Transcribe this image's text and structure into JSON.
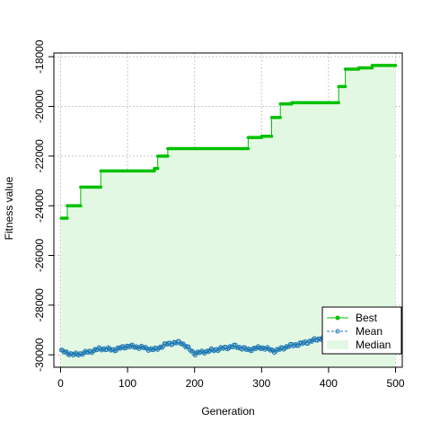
{
  "chart_data": {
    "type": "line",
    "title": "",
    "xlabel": "Generation",
    "ylabel": "Fitness value",
    "xlim": [
      -10,
      510
    ],
    "ylim": [
      -30500,
      -17850
    ],
    "xticks": [
      0,
      100,
      200,
      300,
      400,
      500
    ],
    "yticks": [
      -30000,
      -28000,
      -26000,
      -24000,
      -22000,
      -20000,
      -18000
    ],
    "xtick_labels": [
      "0",
      "100",
      "200",
      "300",
      "400",
      "500"
    ],
    "ytick_labels": [
      "-30000",
      "-28000",
      "-26000",
      "-24000",
      "-22000",
      "-20000",
      "-18000"
    ],
    "grid": true,
    "legend": {
      "placement": "bottom-right",
      "entries": [
        {
          "label": "Best",
          "color": "#00c000",
          "style": "solid-line-points"
        },
        {
          "label": "Mean",
          "color": "#1f78b4",
          "style": "dashed-line-points"
        },
        {
          "label": "Median",
          "color": "#e3f8e3",
          "style": "fill"
        }
      ]
    },
    "series": [
      {
        "name": "Best",
        "color": "#00c000",
        "steps": [
          [
            1,
            -24500
          ],
          [
            10,
            -24000
          ],
          [
            30,
            -23250
          ],
          [
            60,
            -22600
          ],
          [
            140,
            -22500
          ],
          [
            145,
            -22000
          ],
          [
            160,
            -21700
          ],
          [
            280,
            -21250
          ],
          [
            300,
            -21200
          ],
          [
            315,
            -20450
          ],
          [
            328,
            -19900
          ],
          [
            345,
            -19850
          ],
          [
            385,
            -19850
          ],
          [
            415,
            -19200
          ],
          [
            425,
            -18500
          ],
          [
            445,
            -18450
          ],
          [
            465,
            -18350
          ],
          [
            500,
            -18350
          ]
        ]
      },
      {
        "name": "Mean",
        "color": "#1f78b4",
        "points": [
          [
            1,
            -29850
          ],
          [
            20,
            -30000
          ],
          [
            40,
            -29900
          ],
          [
            60,
            -29750
          ],
          [
            80,
            -29800
          ],
          [
            100,
            -29650
          ],
          [
            120,
            -29700
          ],
          [
            140,
            -29800
          ],
          [
            160,
            -29550
          ],
          [
            180,
            -29500
          ],
          [
            200,
            -29950
          ],
          [
            220,
            -29850
          ],
          [
            240,
            -29750
          ],
          [
            260,
            -29650
          ],
          [
            280,
            -29800
          ],
          [
            300,
            -29700
          ],
          [
            320,
            -29850
          ],
          [
            340,
            -29650
          ],
          [
            360,
            -29550
          ],
          [
            380,
            -29400
          ],
          [
            400,
            -29250
          ],
          [
            420,
            -29150
          ],
          [
            440,
            -29100
          ],
          [
            460,
            -29050
          ],
          [
            480,
            -29050
          ],
          [
            500,
            -29000
          ]
        ]
      },
      {
        "name": "Median",
        "color": "#e3f8e3",
        "type": "area",
        "note_lower": -30500
      }
    ]
  }
}
